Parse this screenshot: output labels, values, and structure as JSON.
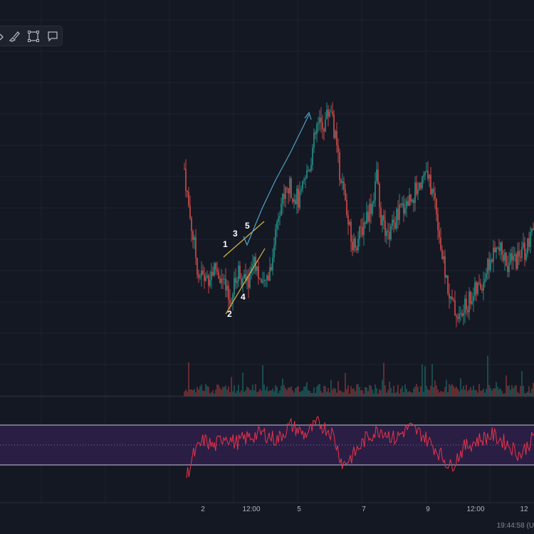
{
  "toolbar": {
    "items": [
      {
        "name": "chevron-icon"
      },
      {
        "name": "brush-icon"
      },
      {
        "name": "rectangle-icon"
      },
      {
        "name": "comment-icon"
      }
    ]
  },
  "time_readout": "19:44:58 (U",
  "colors": {
    "background": "#141823",
    "grid": "#1e2230",
    "up": "#26a69a",
    "down": "#ef5350",
    "rsi_line": "#e8334a",
    "rsi_band": "#2a1e44",
    "trend": "#d8b646",
    "projection": "#4fa3c7"
  },
  "chart_data": {
    "type": "candlestick",
    "x_ticks": [
      "2",
      "12:00",
      "5",
      "7",
      "9",
      "12:00",
      "12"
    ],
    "price_path": [
      [
        0,
        5.1
      ],
      [
        0.01,
        4.55
      ],
      [
        0.025,
        3.95
      ],
      [
        0.04,
        3.35
      ],
      [
        0.06,
        3.25
      ],
      [
        0.09,
        3.45
      ],
      [
        0.11,
        3.2
      ],
      [
        0.13,
        2.85
      ],
      [
        0.155,
        3.4
      ],
      [
        0.18,
        3.15
      ],
      [
        0.2,
        3.65
      ],
      [
        0.225,
        3.05
      ],
      [
        0.25,
        3.55
      ],
      [
        0.27,
        4.45
      ],
      [
        0.3,
        4.8
      ],
      [
        0.33,
        4.55
      ],
      [
        0.36,
        5.2
      ],
      [
        0.38,
        5.8
      ],
      [
        0.4,
        5.85
      ],
      [
        0.42,
        6.15
      ],
      [
        0.44,
        5.25
      ],
      [
        0.46,
        4.55
      ],
      [
        0.48,
        3.8
      ],
      [
        0.5,
        3.95
      ],
      [
        0.52,
        4.3
      ],
      [
        0.54,
        4.55
      ],
      [
        0.55,
        5.05
      ],
      [
        0.56,
        4.35
      ],
      [
        0.58,
        3.9
      ],
      [
        0.61,
        4.3
      ],
      [
        0.63,
        4.5
      ],
      [
        0.66,
        4.7
      ],
      [
        0.69,
        5.05
      ],
      [
        0.72,
        4.55
      ],
      [
        0.74,
        3.55
      ],
      [
        0.765,
        2.85
      ],
      [
        0.79,
        2.6
      ],
      [
        0.82,
        2.95
      ],
      [
        0.85,
        3.15
      ],
      [
        0.875,
        3.55
      ],
      [
        0.9,
        3.75
      ],
      [
        0.93,
        3.5
      ],
      [
        0.96,
        3.65
      ],
      [
        0.985,
        3.8
      ],
      [
        1,
        4.05
      ]
    ],
    "volume_profile": "spiky",
    "rsi": {
      "band_upper": 70,
      "band_lower": 30,
      "mid": 50,
      "path": [
        [
          0,
          18
        ],
        [
          0.02,
          40
        ],
        [
          0.05,
          55
        ],
        [
          0.08,
          48
        ],
        [
          0.11,
          60
        ],
        [
          0.14,
          52
        ],
        [
          0.18,
          58
        ],
        [
          0.22,
          62
        ],
        [
          0.26,
          55
        ],
        [
          0.3,
          70
        ],
        [
          0.34,
          60
        ],
        [
          0.38,
          72
        ],
        [
          0.42,
          62
        ],
        [
          0.45,
          30
        ],
        [
          0.48,
          40
        ],
        [
          0.52,
          58
        ],
        [
          0.56,
          66
        ],
        [
          0.6,
          56
        ],
        [
          0.64,
          68
        ],
        [
          0.68,
          60
        ],
        [
          0.72,
          45
        ],
        [
          0.76,
          28
        ],
        [
          0.8,
          48
        ],
        [
          0.84,
          55
        ],
        [
          0.88,
          60
        ],
        [
          0.92,
          52
        ],
        [
          0.96,
          40
        ],
        [
          1,
          58
        ]
      ]
    },
    "annotations": {
      "wave_labels": [
        "1",
        "2",
        "3",
        "4",
        "5"
      ]
    }
  }
}
